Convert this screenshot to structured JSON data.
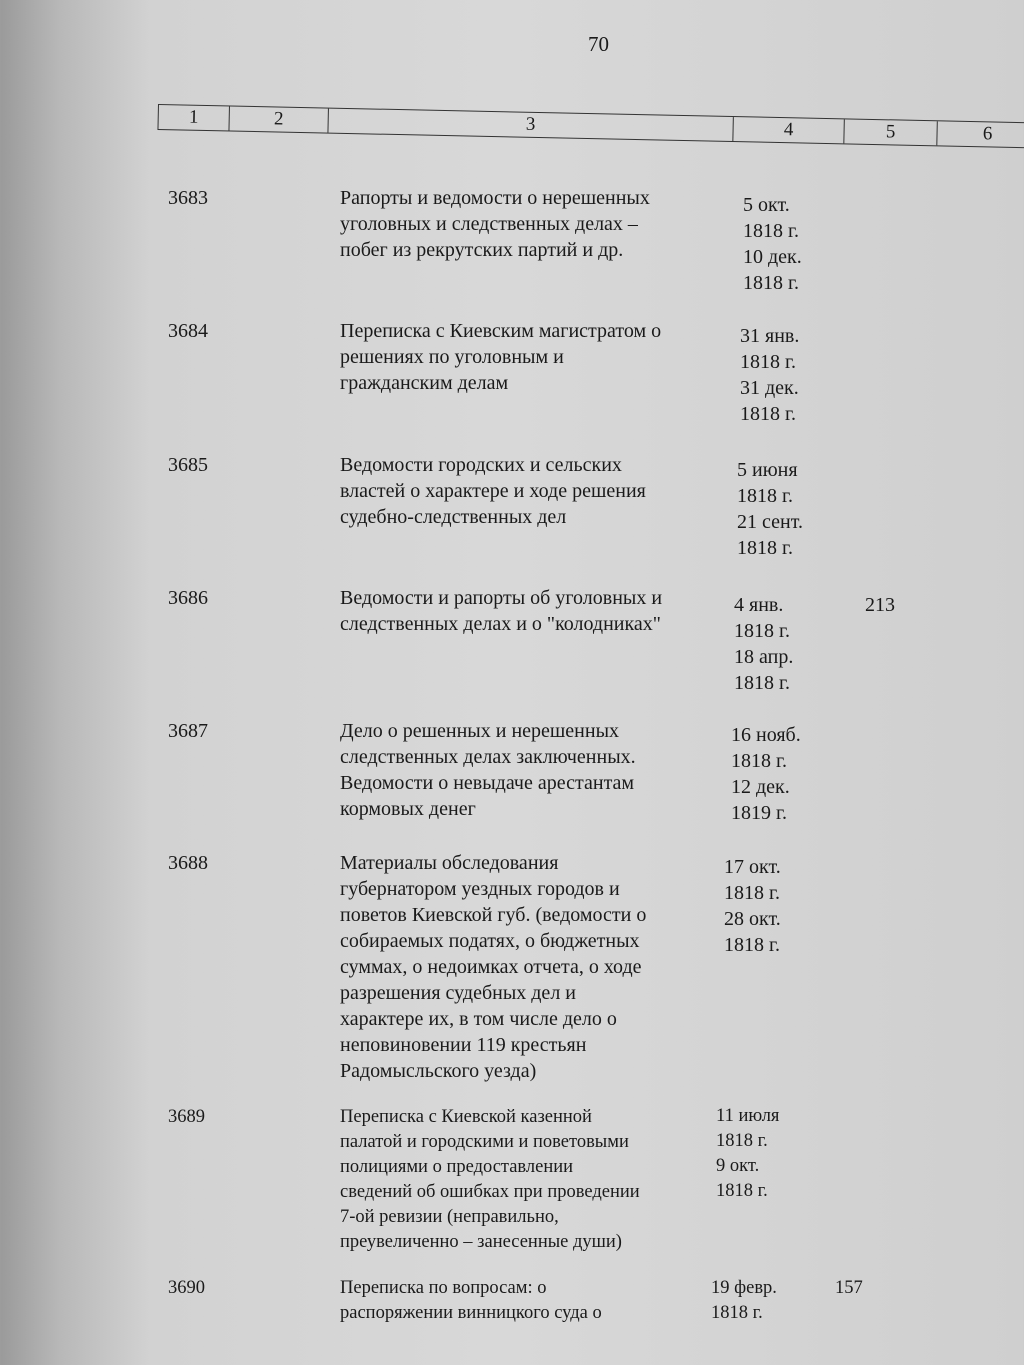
{
  "page_number": "70",
  "columns": [
    "1",
    "2",
    "3",
    "4",
    "5",
    "6"
  ],
  "entries": [
    {
      "num": "3683",
      "desc": [
        "Рапорты и ведомости о нерешенных",
        "уголовных и следственных делах –",
        "побег из рекрутских партий и др."
      ],
      "dates": [
        "5 окт.",
        "1818 г.",
        "10 дек.",
        "1818 г."
      ],
      "col5": ""
    },
    {
      "num": "3684",
      "desc": [
        "Переписка с Киевским магистратом о",
        "решениях по уголовным и",
        "гражданским делам"
      ],
      "dates": [
        "31 янв.",
        "1818 г.",
        "31 дек.",
        "1818 г."
      ],
      "col5": ""
    },
    {
      "num": "3685",
      "desc": [
        "Ведомости городских и сельских",
        "властей о характере и ходе решения",
        "судебно-следственных дел"
      ],
      "dates": [
        "5 июня",
        "1818 г.",
        "21 сент.",
        "1818 г."
      ],
      "col5": ""
    },
    {
      "num": "3686",
      "desc": [
        "Ведомости и рапорты об уголовных и",
        "следственных делах и о \"колодниках\""
      ],
      "dates": [
        "4 янв.",
        "1818 г.",
        "18 апр.",
        "1818 г."
      ],
      "col5": "213"
    },
    {
      "num": "3687",
      "desc": [
        "Дело о решенных и нерешенных",
        "следственных делах заключенных.",
        "Ведомости о невыдаче арестантам",
        "кормовых денег"
      ],
      "dates": [
        "16 нояб.",
        "1818 г.",
        "12 дек.",
        "1819 г."
      ],
      "col5": ""
    },
    {
      "num": "3688",
      "desc": [
        "Материалы обследования",
        "губернатором уездных городов и",
        "поветов Киевской губ. (ведомости о",
        "собираемых податях, о бюджетных",
        "суммах, о недоимках отчета, о ходе",
        "разрешения судебных дел и",
        "характере их, в том числе дело о",
        "неповиновении 119 крестьян",
        "Радомысльского уезда)"
      ],
      "dates": [
        "17 окт.",
        "1818 г.",
        "28 окт.",
        "1818 г."
      ],
      "col5": ""
    },
    {
      "num": "3689",
      "desc": [
        "Переписка с Киевской казенной",
        "палатой и городскими и поветовыми",
        "полициями о предоставлении",
        "сведений об ошибках при проведении",
        "7-ой ревизии (неправильно,",
        "преувеличенно – занесенные души)"
      ],
      "dates": [
        "11 июля",
        "1818 г.",
        "9 окт.",
        "1818 г."
      ],
      "col5": ""
    },
    {
      "num": "3690",
      "desc": [
        "Переписка по вопросам: о",
        "распоряжении винницкого суда о"
      ],
      "dates": [
        "19 февр.",
        "1818 г."
      ],
      "col5": "157"
    }
  ]
}
